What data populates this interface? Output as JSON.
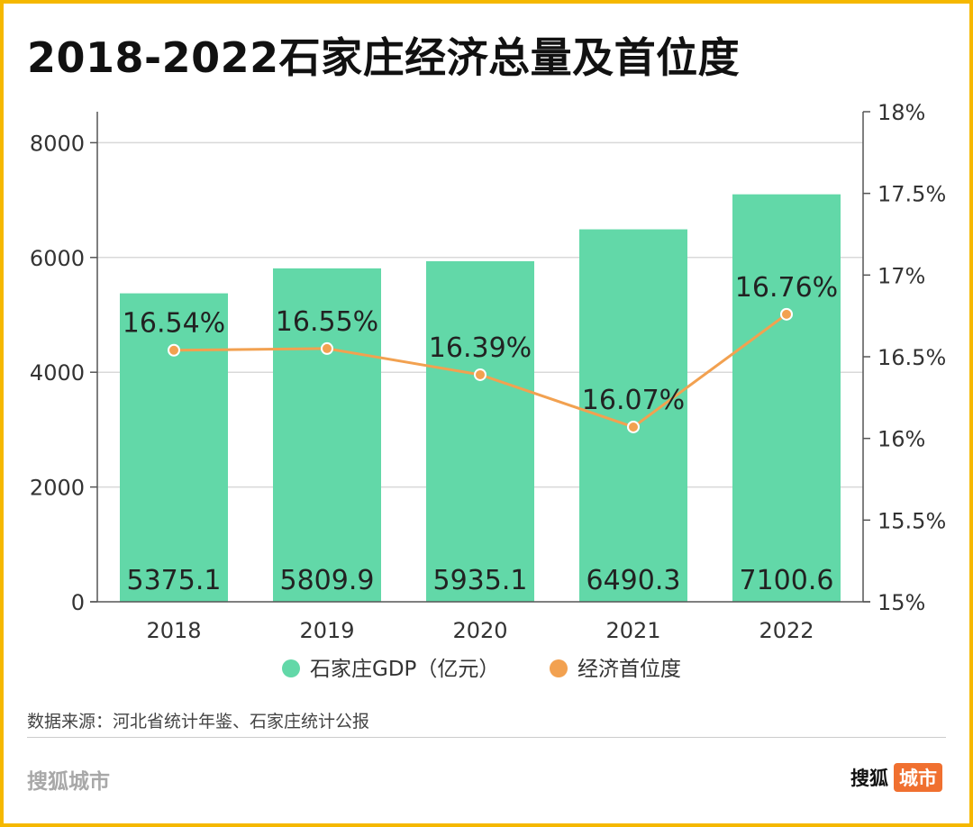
{
  "title": "2018-2022石家庄经济总量及首位度",
  "source": "数据来源：河北省统计年鉴、石家庄统计公报",
  "brand": {
    "left": "搜狐城市",
    "logo_a": "搜狐",
    "logo_b": "城市"
  },
  "colors": {
    "bar": "#62d8a8",
    "line": "#f2a150",
    "border": "#f5b800"
  },
  "chart_data": {
    "type": "bar",
    "categories": [
      "2018",
      "2019",
      "2020",
      "2021",
      "2022"
    ],
    "series": [
      {
        "name": "石家庄GDP（亿元）",
        "type": "bar",
        "axis": "left",
        "values": [
          5375.1,
          5809.9,
          5935.1,
          6490.3,
          7100.6
        ],
        "labels": [
          "5375.1",
          "5809.9",
          "5935.1",
          "6490.3",
          "7100.6"
        ]
      },
      {
        "name": "经济首位度",
        "type": "line",
        "axis": "right",
        "values": [
          16.54,
          16.55,
          16.39,
          16.07,
          16.76
        ],
        "labels": [
          "16.54%",
          "16.55%",
          "16.39%",
          "16.07%",
          "16.76%"
        ]
      }
    ],
    "y_left": {
      "min": 0,
      "max": 8540,
      "ticks": [
        0,
        2000,
        4000,
        6000,
        8000
      ],
      "tick_labels": [
        "0",
        "2000",
        "4000",
        "6000",
        "8000"
      ]
    },
    "y_right": {
      "min": 15,
      "max": 18,
      "ticks": [
        15,
        15.5,
        16,
        16.5,
        17,
        17.5,
        18
      ],
      "tick_labels": [
        "15%",
        "15.5%",
        "16%",
        "16.5%",
        "17%",
        "17.5%",
        "18%"
      ]
    },
    "grid": true,
    "legend": "bottom"
  }
}
